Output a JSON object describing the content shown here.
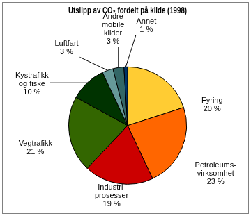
{
  "chart_data": {
    "type": "pie",
    "title": "Utslipp av CO₂ fordelt på kilde (1998)",
    "categories": [
      "Fyring",
      "Petroleums-\nvirksomhet",
      "Industri-\nprosesser",
      "Vegtrafikk",
      "Kystrafikk\nog fiske",
      "Luftfart",
      "Andre\nmobile\nkilder",
      "Annet"
    ],
    "values": [
      20,
      23,
      19,
      21,
      10,
      3,
      3,
      1
    ],
    "value_labels": [
      "20 %",
      "23 %",
      "19 %",
      "21 %",
      "10 %",
      "3 %",
      "3 %",
      "1 %"
    ],
    "colors": [
      "#ffcc33",
      "#ff6600",
      "#cc0000",
      "#336600",
      "#003300",
      "#669999",
      "#336666",
      "#003366"
    ],
    "data_labels": true
  }
}
